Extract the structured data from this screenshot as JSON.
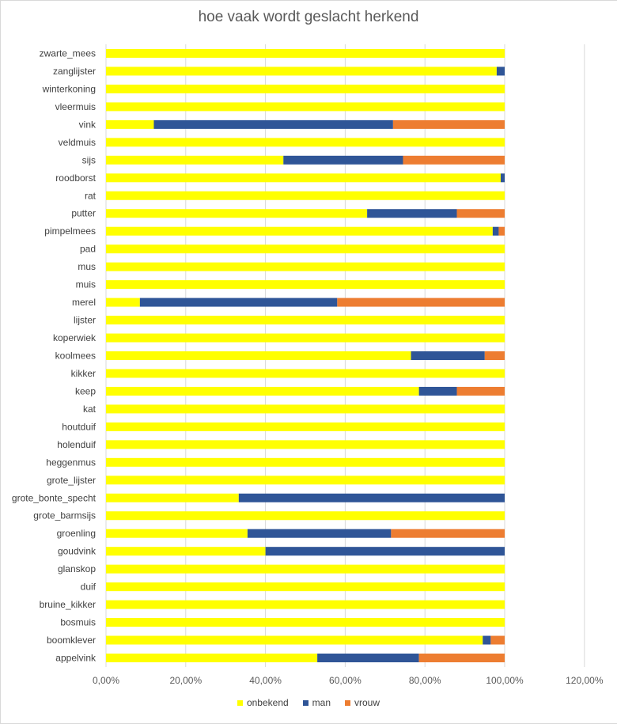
{
  "chart_data": {
    "type": "bar",
    "orientation": "horizontal",
    "stacked": true,
    "title": "hoe vaak wordt geslacht herkend",
    "xlabel": "",
    "ylabel": "",
    "xlim": [
      0,
      1.2
    ],
    "x_ticks": [
      "0,00%",
      "20,00%",
      "40,00%",
      "60,00%",
      "80,00%",
      "100,00%",
      "120,00%"
    ],
    "grid": true,
    "legend_position": "bottom",
    "categories": [
      "appelvink",
      "boomklever",
      "bosmuis",
      "bruine_kikker",
      "duif",
      "glanskop",
      "goudvink",
      "groenling",
      "grote_barmsijs",
      "grote_bonte_specht",
      "grote_lijster",
      "heggenmus",
      "holenduif",
      "houtduif",
      "kat",
      "keep",
      "kikker",
      "koolmees",
      "koperwiek",
      "lijster",
      "merel",
      "muis",
      "mus",
      "pad",
      "pimpelmees",
      "putter",
      "rat",
      "roodborst",
      "sijs",
      "veldmuis",
      "vink",
      "vleermuis",
      "winterkoning",
      "zanglijster",
      "zwarte_mees"
    ],
    "series": [
      {
        "name": "onbekend",
        "color": "#ffff00",
        "values": [
          0.53,
          0.945,
          1,
          1,
          1,
          1,
          0.4,
          0.355,
          1,
          0.333,
          1,
          1,
          1,
          1,
          1,
          0.785,
          1,
          0.765,
          1,
          1,
          0.085,
          1,
          1,
          1,
          0.97,
          0.655,
          1,
          0.99,
          0.445,
          1,
          0.12,
          1,
          1,
          0.98,
          1
        ]
      },
      {
        "name": "man",
        "color": "#2f5597",
        "values": [
          0.255,
          0.02,
          0,
          0,
          0,
          0,
          0.6,
          0.36,
          0,
          0.667,
          0,
          0,
          0,
          0,
          0,
          0.095,
          0,
          0.185,
          0,
          0,
          0.495,
          0,
          0,
          0,
          0.015,
          0.225,
          0,
          0.01,
          0.3,
          0,
          0.6,
          0,
          0,
          0.02,
          0
        ]
      },
      {
        "name": "vrouw",
        "color": "#ed7d31",
        "values": [
          0.215,
          0.035,
          0,
          0,
          0,
          0,
          0,
          0.285,
          0,
          0,
          0,
          0,
          0,
          0,
          0,
          0.12,
          0,
          0.05,
          0,
          0,
          0.42,
          0,
          0,
          0,
          0.015,
          0.12,
          0,
          0,
          0.255,
          0,
          0.28,
          0,
          0,
          0,
          0
        ]
      }
    ]
  }
}
